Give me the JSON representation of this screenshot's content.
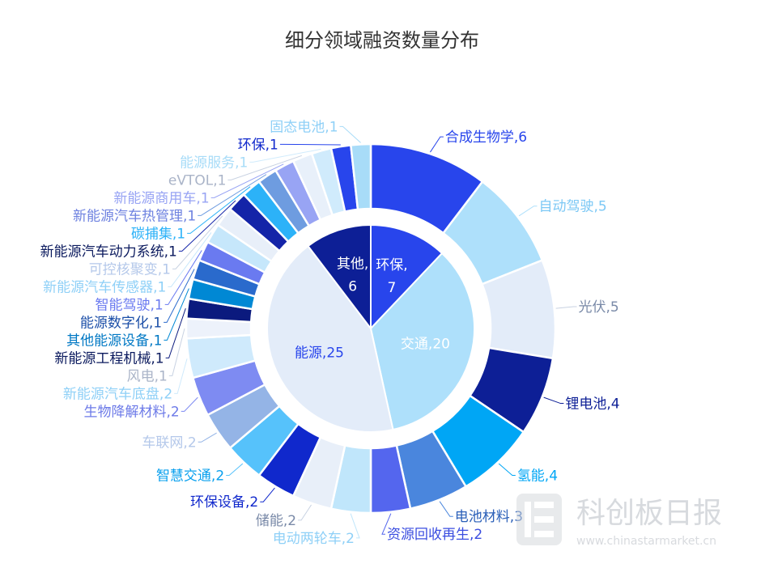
{
  "chart_data": {
    "type": "pie",
    "variant": "nested-donut",
    "title": "细分领域融资数量分布",
    "inner": [
      {
        "name": "环保",
        "value": 7,
        "color": "#2845ec",
        "label_color": "#ffffff"
      },
      {
        "name": "交通",
        "value": 20,
        "color": "#aee0fb",
        "label_color": "#ffffff"
      },
      {
        "name": "能源",
        "value": 25,
        "color": "#e3ecf9",
        "label_color": "#2845ec"
      },
      {
        "name": "其他",
        "value": 6,
        "color": "#0d1f96",
        "label_color": "#ffffff"
      }
    ],
    "outer": [
      {
        "name": "合成生物学",
        "value": 6,
        "color": "#2845ec",
        "label_color": "#2845ec"
      },
      {
        "name": "自动驾驶",
        "value": 5,
        "color": "#aee0fb",
        "label_color": "#7cc8f5"
      },
      {
        "name": "光伏",
        "value": 5,
        "color": "#e3ecf9",
        "label_color": "#7a8aa8"
      },
      {
        "name": "锂电池",
        "value": 4,
        "color": "#0d1f96",
        "label_color": "#0d1f96"
      },
      {
        "name": "氢能",
        "value": 4,
        "color": "#00a6f5",
        "label_color": "#00a6f5"
      },
      {
        "name": "电池材料",
        "value": 3,
        "color": "#4a86dd",
        "label_color": "#2a5fb8"
      },
      {
        "name": "资源回收再生",
        "value": 2,
        "color": "#5466ee",
        "label_color": "#3b4ee0"
      },
      {
        "name": "电动两轮车",
        "value": 2,
        "color": "#c0e6fb",
        "label_color": "#8fd0f7"
      },
      {
        "name": "储能",
        "value": 2,
        "color": "#e8eff9",
        "label_color": "#7a8aa8"
      },
      {
        "name": "环保设备",
        "value": 2,
        "color": "#1028cc",
        "label_color": "#1028cc"
      },
      {
        "name": "智慧交通",
        "value": 2,
        "color": "#56c2fb",
        "label_color": "#0aa0ee"
      },
      {
        "name": "车联网",
        "value": 2,
        "color": "#94b4e6",
        "label_color": "#b4c8ea"
      },
      {
        "name": "生物降解材料",
        "value": 2,
        "color": "#7e8bf2",
        "label_color": "#6c7ae8"
      },
      {
        "name": "新能源汽车底盘",
        "value": 2,
        "color": "#cfeafc",
        "label_color": "#8fd0f7"
      },
      {
        "name": "风电",
        "value": 1,
        "color": "#edf2fb",
        "label_color": "#aab4c8"
      },
      {
        "name": "新能源工程机械",
        "value": 1,
        "color": "#0b1a7e",
        "label_color": "#0b1a5e"
      },
      {
        "name": "其他能源设备",
        "value": 1,
        "color": "#0088d4",
        "label_color": "#0078c4"
      },
      {
        "name": "能源数字化",
        "value": 1,
        "color": "#2a6acc",
        "label_color": "#1c4fa8"
      },
      {
        "name": "智能驾驶",
        "value": 1,
        "color": "#6a7af0",
        "label_color": "#6a7af0"
      },
      {
        "name": "新能源汽车传感器",
        "value": 1,
        "color": "#c6e7fb",
        "label_color": "#8fd0f7"
      },
      {
        "name": "可控核聚变",
        "value": 1,
        "color": "#e8eff9",
        "label_color": "#b4c8ea"
      },
      {
        "name": "新能源汽车动力系统",
        "value": 1,
        "color": "#1424a8",
        "label_color": "#0b1a5e"
      },
      {
        "name": "碳捕集",
        "value": 1,
        "color": "#2cb2f8",
        "label_color": "#2cb2f8"
      },
      {
        "name": "新能源汽车热管理",
        "value": 1,
        "color": "#6e9ce0",
        "label_color": "#6e82e0"
      },
      {
        "name": "新能源商用车",
        "value": 1,
        "color": "#98a4f4",
        "label_color": "#98a4f4"
      },
      {
        "name": "eVTOL",
        "value": 1,
        "color": "#e8f0fa",
        "label_color": "#aab4c8"
      },
      {
        "name": "能源服务",
        "value": 1,
        "color": "#d0ebfc",
        "label_color": "#a8dcf8"
      },
      {
        "name": "环保",
        "value": 1,
        "color": "#2845ec",
        "label_color": "#1028cc"
      },
      {
        "name": "固态电池",
        "value": 1,
        "color": "#a8dcf8",
        "label_color": "#8fd0f7"
      }
    ]
  },
  "watermark": {
    "brand": "科创板日报",
    "url": "www.chinastarmarket.cn"
  }
}
